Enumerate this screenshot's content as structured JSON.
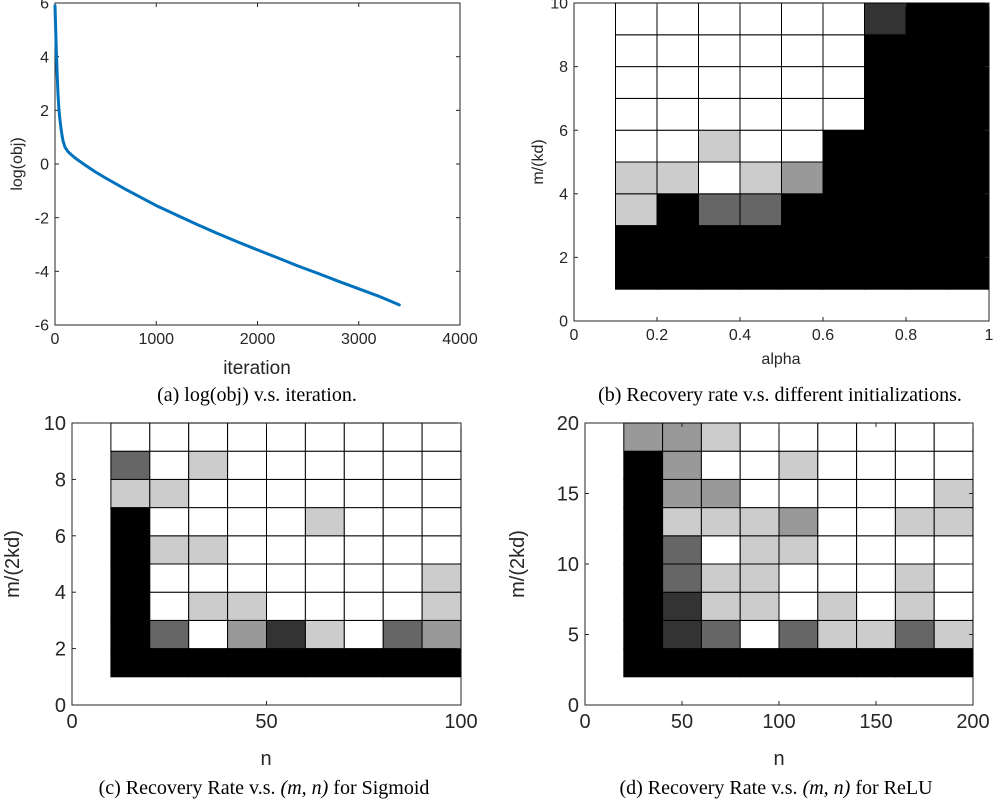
{
  "chart_data": [
    {
      "id": "a",
      "type": "line",
      "caption": "(a) log(obj) v.s. iteration.",
      "xlabel": "iteration",
      "ylabel": "log(obj)",
      "xlim": [
        0,
        4000
      ],
      "ylim": [
        -6,
        6
      ],
      "xticks": [
        "0",
        "1000",
        "2000",
        "3000",
        "4000"
      ],
      "yticks": [
        "-6",
        "-4",
        "-2",
        "0",
        "2",
        "4",
        "6"
      ],
      "color": "#0072BD",
      "series": [
        {
          "x": [
            0,
            10,
            20,
            30,
            40,
            50,
            60,
            70,
            80,
            100,
            130,
            160,
            200,
            300,
            400,
            500,
            700,
            900,
            1000,
            1200,
            1400,
            1600,
            1800,
            2000,
            2200,
            2400,
            2600,
            2800,
            3000,
            3200,
            3400
          ],
          "y": [
            5.9,
            4.6,
            3.5,
            2.6,
            2.0,
            1.6,
            1.3,
            1.05,
            0.85,
            0.62,
            0.45,
            0.35,
            0.22,
            -0.05,
            -0.3,
            -0.52,
            -0.95,
            -1.35,
            -1.55,
            -1.9,
            -2.25,
            -2.58,
            -2.9,
            -3.2,
            -3.5,
            -3.8,
            -4.08,
            -4.37,
            -4.65,
            -4.93,
            -5.25
          ]
        }
      ]
    },
    {
      "id": "b",
      "type": "heatmap",
      "caption": "(b) Recovery rate v.s. different initializations.",
      "xlabel": "alpha",
      "ylabel": "m/(kd)",
      "xlim": [
        0,
        1
      ],
      "ylim": [
        0,
        10
      ],
      "xticks": [
        "0",
        "0.2",
        "0.4",
        "0.6",
        "0.8",
        "1"
      ],
      "yticks": [
        "0",
        "2",
        "4",
        "6",
        "8",
        "10"
      ],
      "x_edges": [
        0.1,
        0.2,
        0.3,
        0.4,
        0.5,
        0.6,
        0.7,
        0.8,
        0.9,
        1.0
      ],
      "y_edges": [
        1,
        2,
        3,
        4,
        5,
        6,
        7,
        8,
        9,
        10
      ],
      "values": [
        [
          0,
          0,
          0,
          0,
          0,
          0,
          0,
          0,
          0
        ],
        [
          0,
          0,
          0,
          0,
          0,
          0,
          0,
          0,
          0
        ],
        [
          0.8,
          0,
          0.4,
          0.4,
          0,
          0,
          0,
          0,
          0
        ],
        [
          0.8,
          0.8,
          1,
          0.8,
          0.6,
          0,
          0,
          0,
          0
        ],
        [
          1,
          1,
          0.8,
          1,
          1,
          0,
          0,
          0,
          0
        ],
        [
          1,
          1,
          1,
          1,
          1,
          1,
          0,
          0,
          0
        ],
        [
          1,
          1,
          1,
          1,
          1,
          1,
          0,
          0,
          0
        ],
        [
          1,
          1,
          1,
          1,
          1,
          1,
          0,
          0,
          0
        ],
        [
          1,
          1,
          1,
          1,
          1,
          1,
          0.2,
          0,
          0
        ]
      ]
    },
    {
      "id": "c",
      "type": "heatmap",
      "caption_text": "(c) Recovery Rate v.s.",
      "caption_math": "(m, n)",
      "caption_suffix": "for Sigmoid",
      "xlabel": "n",
      "ylabel": "m/(2kd)",
      "xlim": [
        0,
        100
      ],
      "ylim": [
        0,
        10
      ],
      "xticks": [
        "0",
        "50",
        "100"
      ],
      "yticks": [
        "0",
        "2",
        "4",
        "6",
        "8",
        "10"
      ],
      "x_edges": [
        10,
        20,
        30,
        40,
        50,
        60,
        70,
        80,
        90,
        100
      ],
      "y_edges": [
        1,
        2,
        3,
        4,
        5,
        6,
        7,
        8,
        9,
        10
      ],
      "values": [
        [
          0,
          0,
          0,
          0,
          0,
          0,
          0,
          0,
          0
        ],
        [
          0,
          0.4,
          1,
          0.6,
          0.2,
          0.8,
          1,
          0.4,
          0.6
        ],
        [
          0,
          1,
          0.8,
          0.8,
          1,
          1,
          1,
          1,
          0.8
        ],
        [
          0,
          1,
          1,
          1,
          1,
          1,
          1,
          1,
          0.8
        ],
        [
          0,
          0.8,
          0.8,
          1,
          1,
          1,
          1,
          1,
          1
        ],
        [
          0,
          1,
          1,
          1,
          1,
          0.8,
          1,
          1,
          1
        ],
        [
          0.8,
          0.8,
          1,
          1,
          1,
          1,
          1,
          1,
          1
        ],
        [
          0.4,
          1,
          0.8,
          1,
          1,
          1,
          1,
          1,
          1
        ],
        [
          1,
          1,
          1,
          1,
          1,
          1,
          1,
          1,
          1
        ]
      ]
    },
    {
      "id": "d",
      "type": "heatmap",
      "caption_text": "(d) Recovery Rate v.s.",
      "caption_math": "(m, n)",
      "caption_suffix": "for ReLU",
      "xlabel": "n",
      "ylabel": "m/(2kd)",
      "xlim": [
        0,
        200
      ],
      "ylim": [
        0,
        20
      ],
      "xticks": [
        "0",
        "50",
        "100",
        "150",
        "200"
      ],
      "yticks": [
        "0",
        "5",
        "10",
        "15",
        "20"
      ],
      "x_edges": [
        20,
        40,
        60,
        80,
        100,
        120,
        140,
        160,
        180,
        200
      ],
      "y_edges": [
        2,
        4,
        6,
        8,
        10,
        12,
        14,
        16,
        18,
        20
      ],
      "values": [
        [
          0,
          0,
          0,
          0,
          0,
          0,
          0,
          0,
          0
        ],
        [
          0,
          0.2,
          0.4,
          1,
          0.4,
          0.8,
          0.8,
          0.4,
          0.8
        ],
        [
          0,
          0.2,
          0.8,
          0.8,
          1,
          0.8,
          1,
          0.8,
          1
        ],
        [
          0,
          0.4,
          0.8,
          0.8,
          1,
          1,
          1,
          0.8,
          1
        ],
        [
          0,
          0.4,
          1,
          0.8,
          0.8,
          1,
          1,
          1,
          1
        ],
        [
          0,
          0.8,
          0.8,
          0.8,
          0.6,
          1,
          1,
          0.8,
          0.8
        ],
        [
          0,
          0.6,
          0.6,
          1,
          1,
          1,
          1,
          1,
          0.8
        ],
        [
          0,
          0.6,
          1,
          1,
          0.8,
          1,
          1,
          1,
          1
        ],
        [
          0.6,
          0.6,
          0.8,
          1,
          1,
          1,
          1,
          1,
          1
        ]
      ]
    }
  ]
}
